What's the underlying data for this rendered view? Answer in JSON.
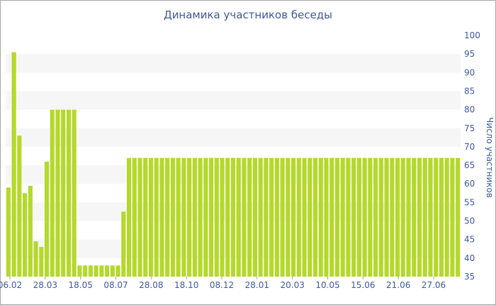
{
  "chart_data": {
    "type": "bar",
    "title": "Динамика участников беседы",
    "ylabel": "Число участников",
    "xlabel": "",
    "ylim": [
      35,
      100
    ],
    "y_ticks": [
      35,
      40,
      45,
      50,
      55,
      60,
      65,
      70,
      75,
      80,
      85,
      90,
      95,
      100
    ],
    "x_tick_labels": [
      "06.02",
      "28.03",
      "18.05",
      "08.07",
      "28.08",
      "18.10",
      "08.12",
      "28.01",
      "20.03",
      "10.05",
      "15.06",
      "21.06",
      "27.06"
    ],
    "grid": "horizontal bands",
    "bar_color": "#b5d82b",
    "values": [
      59,
      95.5,
      73,
      57.5,
      59.5,
      44.5,
      43,
      66,
      80,
      80,
      80,
      80,
      80,
      38,
      38,
      38,
      38,
      38,
      38,
      38,
      38,
      52.5,
      67,
      67,
      67,
      67,
      67,
      67,
      67,
      67,
      67,
      67,
      67,
      67,
      67,
      67,
      67,
      67,
      67,
      67,
      67,
      67,
      67,
      67,
      67,
      67,
      67,
      67,
      67,
      67,
      67,
      67,
      67,
      67,
      67,
      67,
      67,
      67,
      67,
      67,
      67,
      67,
      67,
      67,
      67,
      67,
      67,
      67,
      67,
      67,
      67,
      67,
      67,
      67,
      67,
      67,
      67,
      67,
      67,
      67,
      67,
      67,
      67
    ]
  }
}
